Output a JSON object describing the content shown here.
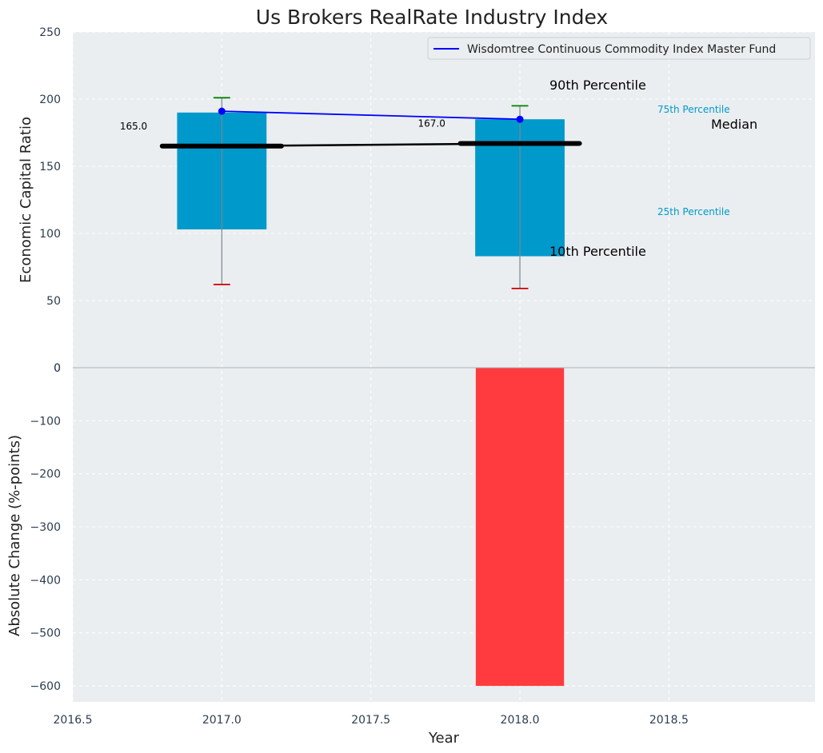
{
  "chart_data": {
    "type": "bar",
    "title": "Us Brokers RealRate Industry Index",
    "xlabel": "Year",
    "x_ticks": [
      "2016.5",
      "2017.0",
      "2017.5",
      "2018.0",
      "2018.5"
    ],
    "xlim": [
      2016.5,
      2018.99
    ],
    "grid": true,
    "legend": {
      "placement": "top-right",
      "entries": [
        "Wisdomtree Continuous Commodity Index Master Fund"
      ]
    },
    "top_panel": {
      "ylabel": "Economic Capital Ratio",
      "ylim": [
        0,
        250
      ],
      "y_ticks": [
        "0",
        "50",
        "100",
        "150",
        "200",
        "250"
      ],
      "years": [
        2017.0,
        2018.0
      ],
      "p10": [
        62,
        59
      ],
      "p25": [
        103,
        83
      ],
      "median": [
        165.0,
        167.0
      ],
      "median_labels": [
        "165.0",
        "167.0"
      ],
      "p75": [
        190,
        185
      ],
      "p90": [
        201,
        195
      ],
      "series": [
        {
          "name": "Wisdomtree Continuous Commodity Index Master Fund",
          "x": [
            2017.0,
            2018.0
          ],
          "y": [
            191,
            185
          ],
          "color": "#0000ff"
        }
      ],
      "annotations": {
        "p90": "90th Percentile",
        "p75": "75th Percentile",
        "median": "Median",
        "p25": "25th Percentile",
        "p10": "10th Percentile"
      }
    },
    "bottom_panel": {
      "ylabel": "Absolute Change (%-points)",
      "ylim": [
        -630,
        0
      ],
      "y_ticks": [
        "0",
        "−100",
        "−200",
        "−300",
        "−400",
        "−500",
        "−600"
      ],
      "categories": [
        2017.0,
        2018.0
      ],
      "values": [
        0,
        -600
      ]
    },
    "colors": {
      "box": "#0099cc",
      "negative_bar": "#ff3b3f",
      "series_line": "#0000ff",
      "whisker_top": "#008000",
      "whisker_bottom": "#cc0000",
      "median": "#000000",
      "panel_bg": "#eaeef0",
      "percentile_label": "#0099cc"
    }
  }
}
